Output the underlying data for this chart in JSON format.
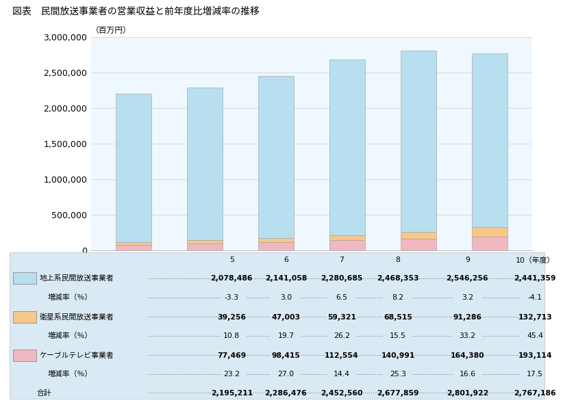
{
  "title": "図表　民間放送事業者の営業収益と前年度比増減率の推移",
  "ylabel": "（百万円）",
  "years": [
    "5",
    "6",
    "7",
    "8",
    "9",
    "10（年度）"
  ],
  "terrestrial": [
    2078486,
    2141058,
    2280685,
    2468353,
    2546256,
    2441359
  ],
  "satellite": [
    39256,
    47003,
    59321,
    68515,
    91286,
    132713
  ],
  "cable": [
    77469,
    98415,
    112554,
    140991,
    164380,
    193114
  ],
  "terrestrial_rate": [
    "-3.3",
    "3.0",
    "6.5",
    "8.2",
    "3.2",
    "-4.1"
  ],
  "satellite_rate": [
    "10.8",
    "19.7",
    "26.2",
    "15.5",
    "33.2",
    "45.4"
  ],
  "cable_rate": [
    "23.2",
    "27.0",
    "14.4",
    "25.3",
    "16.6",
    "17.5"
  ],
  "total": [
    2195211,
    2286476,
    2452560,
    2677859,
    2801922,
    2767186
  ],
  "color_terrestrial": "#b8dff0",
  "color_satellite": "#f5c88a",
  "color_cable": "#f0b8c0",
  "color_table_bg": "#daeaf5",
  "ylim": [
    0,
    3000000
  ],
  "yticks": [
    0,
    500000,
    1000000,
    1500000,
    2000000,
    2500000,
    3000000
  ]
}
